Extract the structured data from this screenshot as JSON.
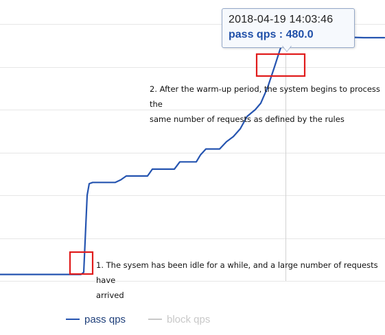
{
  "chart_data": {
    "type": "line",
    "title": "",
    "xlabel": "",
    "ylabel": "",
    "grid": true,
    "legend_position": "bottom-left",
    "series": [
      {
        "name": "pass qps",
        "color": "#2554b0",
        "points": [
          [
            0,
            15
          ],
          [
            118,
            15
          ],
          [
            122,
            20
          ],
          [
            127,
            200
          ],
          [
            130,
            227
          ],
          [
            135,
            230
          ],
          [
            168,
            230
          ],
          [
            176,
            236
          ],
          [
            184,
            245
          ],
          [
            215,
            245
          ],
          [
            222,
            261
          ],
          [
            254,
            261
          ],
          [
            262,
            278
          ],
          [
            286,
            278
          ],
          [
            292,
            294
          ],
          [
            300,
            308
          ],
          [
            320,
            308
          ],
          [
            330,
            325
          ],
          [
            340,
            337
          ],
          [
            350,
            355
          ],
          [
            360,
            384
          ],
          [
            372,
            400
          ],
          [
            380,
            415
          ],
          [
            390,
            452
          ],
          [
            400,
            500
          ],
          [
            408,
            540
          ],
          [
            416,
            572
          ],
          [
            430,
            572
          ],
          [
            470,
            570
          ],
          [
            490,
            570
          ],
          [
            530,
            568
          ],
          [
            560,
            568
          ]
        ]
      },
      {
        "name": "block qps",
        "color": "#c8c8c8",
        "points": []
      }
    ],
    "xlim": [
      0,
      560
    ],
    "ylim": [
      0,
      640
    ],
    "highlight_x": 416,
    "annotations": [
      {
        "id": "warmup-complete",
        "text_lines": [
          "2. After the warm-up period, the system begins to process the",
          "same number of requests as defined by the rules"
        ]
      },
      {
        "id": "idle-burst",
        "text_lines": [
          "1. The sysem has been idle for a while, and a large number of requests have",
          "arrived"
        ]
      }
    ],
    "tooltip": {
      "time": "2018-04-19 14:03:46",
      "series_label": "pass qps : 480.0",
      "color": "#1f4fa8"
    },
    "highlight_box_color": "#e01b1b",
    "grid_color": "#e6e6e6"
  }
}
